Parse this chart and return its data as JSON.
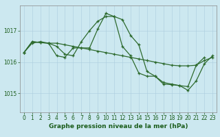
{
  "title": "Graphe pression niveau de la mer (hPa)",
  "background_color": "#cce8f0",
  "plot_bg_color": "#cce8f0",
  "grid_color": "#aaccdd",
  "line_color": "#2d6a2d",
  "text_color": "#1a5c1a",
  "x_labels": [
    "0",
    "1",
    "2",
    "3",
    "4",
    "5",
    "6",
    "7",
    "8",
    "9",
    "10",
    "11",
    "12",
    "13",
    "14",
    "15",
    "16",
    "17",
    "18",
    "19",
    "20",
    "21",
    "22",
    "23"
  ],
  "yticks": [
    1015,
    1016,
    1017
  ],
  "ylim": [
    1014.4,
    1017.8
  ],
  "xlim": [
    -0.5,
    23.5
  ],
  "series1": [
    1016.3,
    1016.6,
    1016.65,
    1016.6,
    1016.6,
    1016.55,
    1016.5,
    1016.45,
    1016.4,
    1016.35,
    1016.3,
    1016.25,
    1016.2,
    1016.15,
    1016.1,
    1016.05,
    1016.0,
    1015.95,
    1015.9,
    1015.88,
    1015.88,
    1015.9,
    1016.05,
    1016.15
  ],
  "series2": [
    1016.3,
    1016.65,
    1016.62,
    1016.6,
    1016.5,
    1016.25,
    1016.2,
    1016.65,
    1017.0,
    1017.3,
    1017.45,
    1017.45,
    1017.35,
    1016.85,
    1016.55,
    1015.7,
    1015.55,
    1015.35,
    1015.3,
    1015.25,
    1015.1,
    1015.4,
    1015.95,
    1016.2
  ],
  "series3": [
    1016.3,
    1016.65,
    1016.62,
    1016.6,
    1016.2,
    1016.15,
    1016.45,
    1016.45,
    1016.45,
    1017.05,
    1017.55,
    1017.45,
    1016.5,
    1016.2,
    1015.65,
    1015.55,
    1015.55,
    1015.3,
    1015.28,
    1015.25,
    1015.22,
    1015.9,
    1016.15,
    null
  ],
  "title_fontsize": 6.5,
  "tick_fontsize": 5.5
}
